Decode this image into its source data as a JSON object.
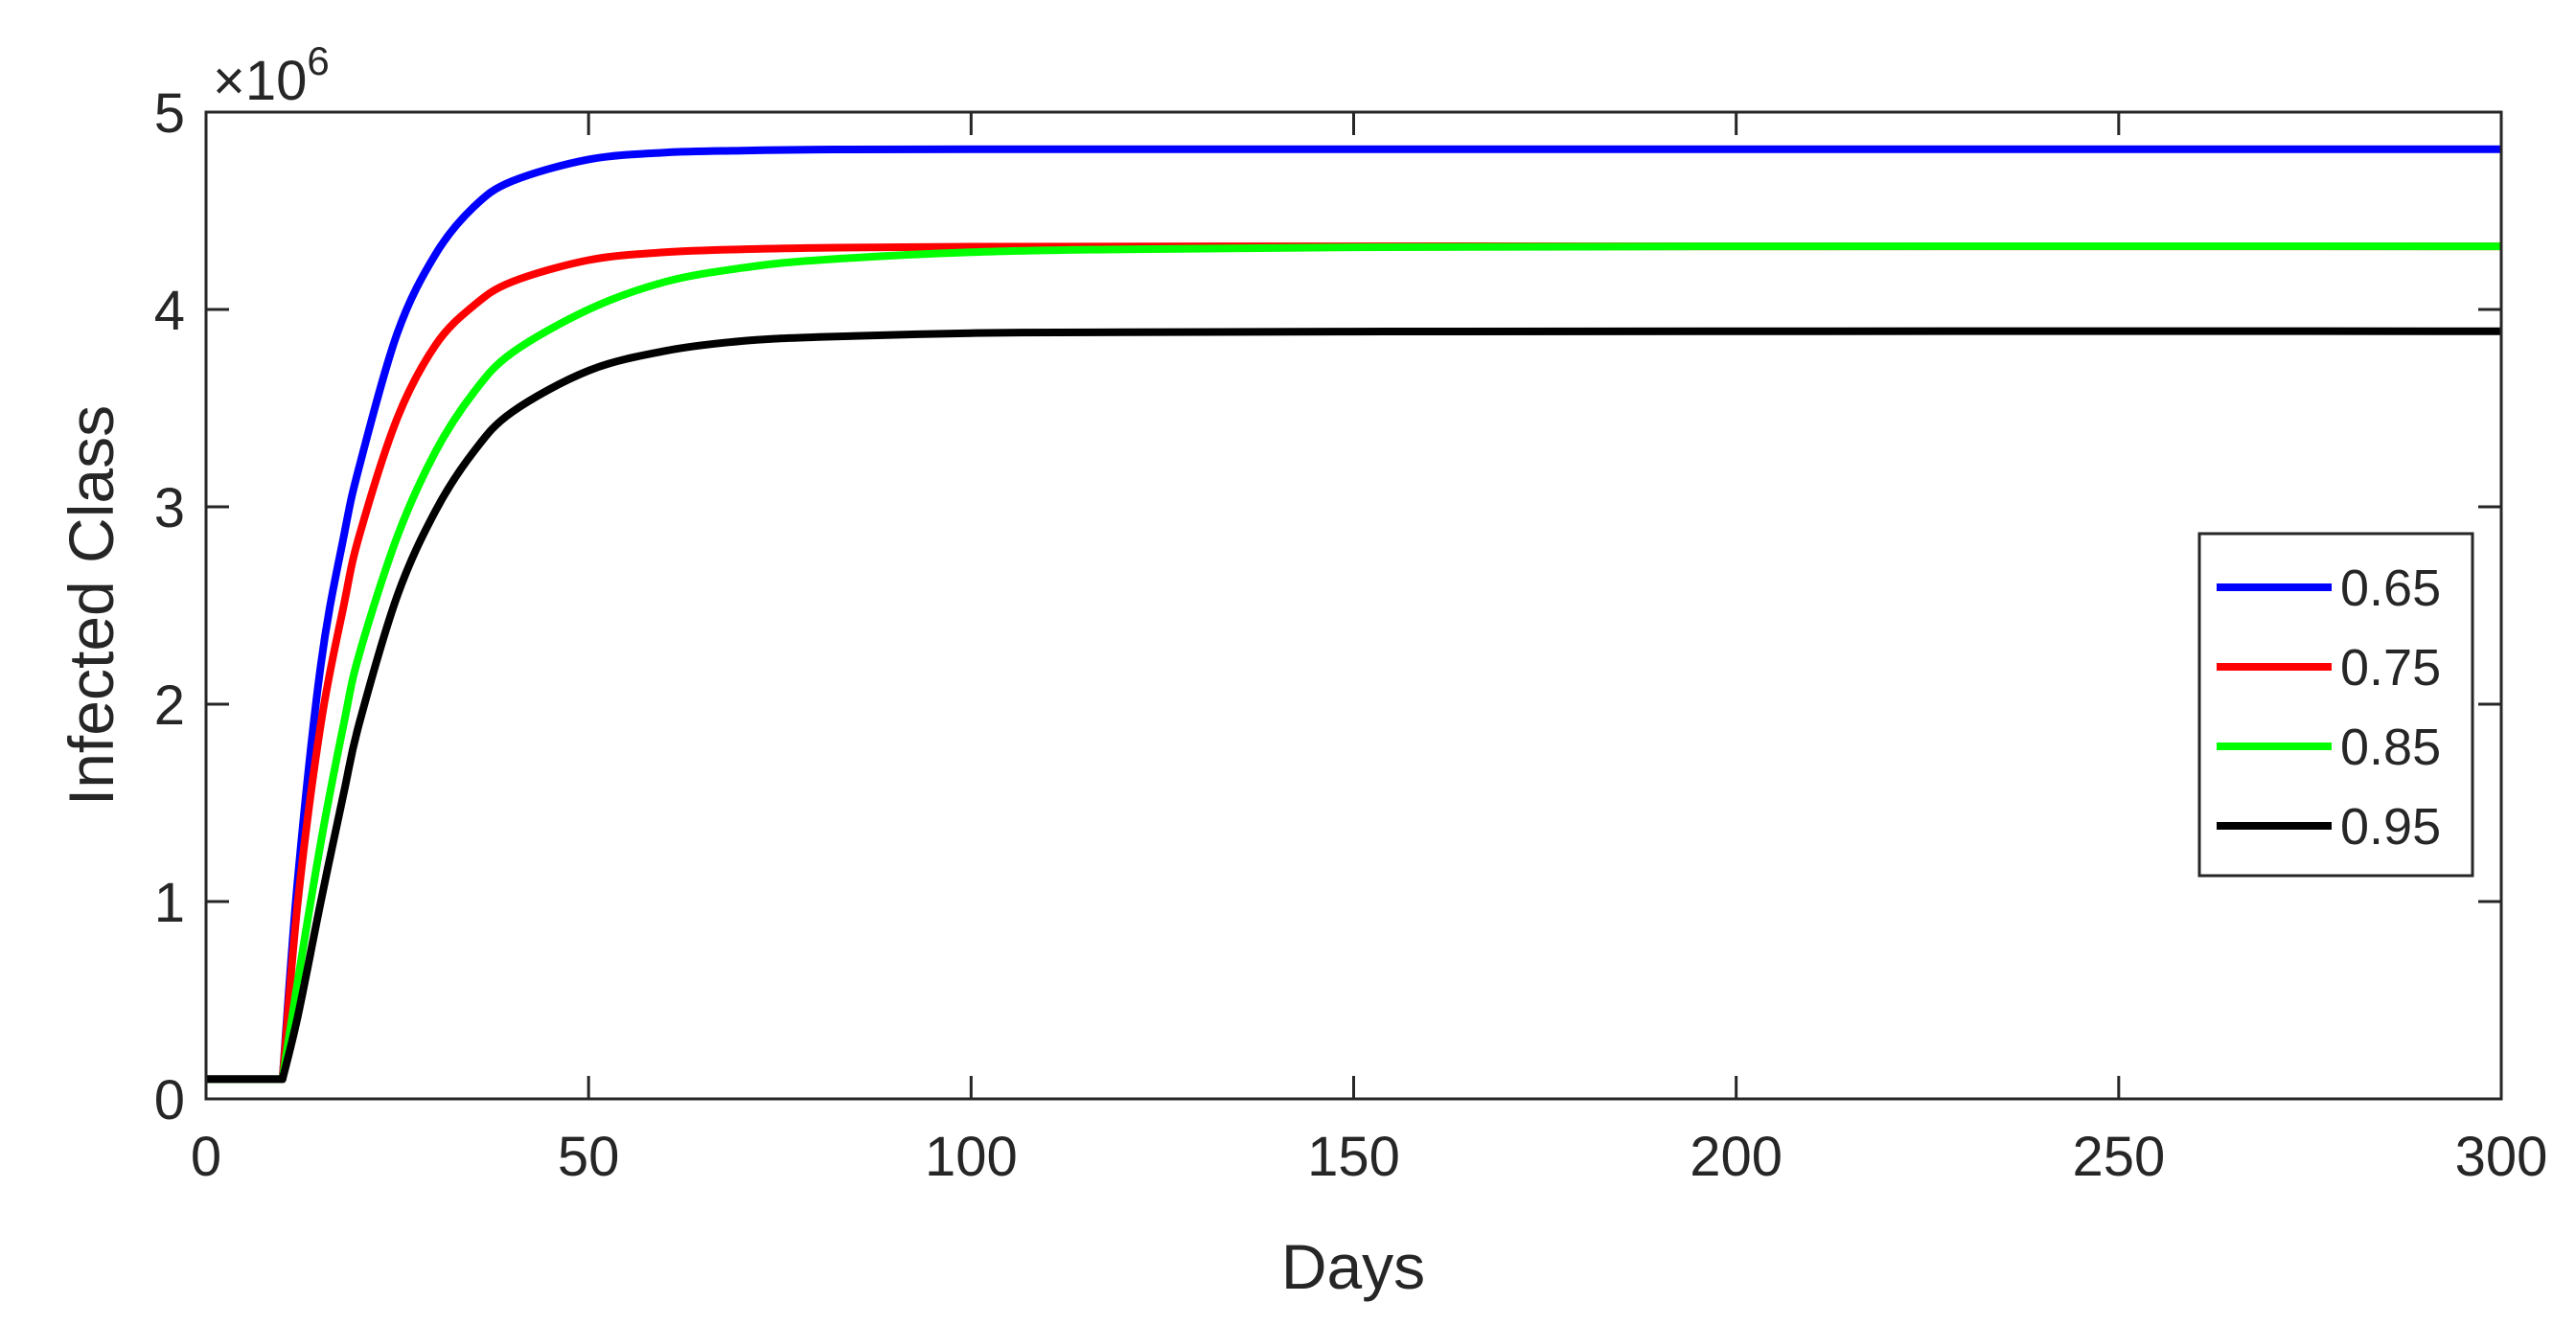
{
  "chart_data": {
    "type": "line",
    "xlabel": "Days",
    "ylabel": "Infected Class",
    "y_exponent_label": "×10",
    "y_exponent_power": "6",
    "xlim": [
      0,
      300
    ],
    "ylim": [
      0,
      5000000
    ],
    "xticks": [
      0,
      50,
      100,
      150,
      200,
      250,
      300
    ],
    "yticks": [
      0,
      1000000,
      2000000,
      3000000,
      4000000,
      5000000
    ],
    "xtick_labels": [
      "0",
      "50",
      "100",
      "150",
      "200",
      "250",
      "300"
    ],
    "ytick_labels": [
      "0",
      "1",
      "2",
      "3",
      "4",
      "5"
    ],
    "grid": false,
    "legend_position": "right",
    "series": [
      {
        "name": "0.65",
        "color": "#0000ff",
        "x": [
          0,
          10,
          12,
          15,
          18,
          20,
          25,
          30,
          35,
          40,
          50,
          60,
          70,
          80,
          100,
          150,
          200,
          300
        ],
        "y": [
          100000,
          100000,
          1120000,
          2200000,
          2850000,
          3200000,
          3880000,
          4280000,
          4520000,
          4650000,
          4760000,
          4795000,
          4805000,
          4810000,
          4812000,
          4812000,
          4812000,
          4812000
        ]
      },
      {
        "name": "0.75",
        "color": "#ff0000",
        "x": [
          0,
          10,
          12,
          15,
          18,
          20,
          25,
          30,
          35,
          40,
          50,
          60,
          70,
          80,
          100,
          150,
          200,
          300
        ],
        "y": [
          100000,
          100000,
          1000000,
          1900000,
          2500000,
          2850000,
          3450000,
          3820000,
          4020000,
          4140000,
          4250000,
          4290000,
          4305000,
          4312000,
          4318000,
          4320000,
          4320000,
          4320000
        ]
      },
      {
        "name": "0.85",
        "color": "#00ff00",
        "x": [
          0,
          10,
          12,
          15,
          18,
          20,
          25,
          30,
          35,
          40,
          50,
          60,
          70,
          80,
          100,
          120,
          150,
          200,
          300
        ],
        "y": [
          100000,
          100000,
          600000,
          1300000,
          1900000,
          2250000,
          2850000,
          3280000,
          3580000,
          3780000,
          4000000,
          4140000,
          4210000,
          4250000,
          4290000,
          4305000,
          4315000,
          4320000,
          4320000
        ]
      },
      {
        "name": "0.95",
        "color": "#000000",
        "x": [
          0,
          10,
          12,
          15,
          18,
          20,
          25,
          30,
          35,
          40,
          50,
          60,
          70,
          80,
          100,
          120,
          150,
          200,
          300
        ],
        "y": [
          100000,
          100000,
          420000,
          1000000,
          1550000,
          1900000,
          2550000,
          2980000,
          3280000,
          3480000,
          3690000,
          3790000,
          3840000,
          3860000,
          3880000,
          3885000,
          3888000,
          3890000,
          3890000
        ]
      }
    ]
  }
}
